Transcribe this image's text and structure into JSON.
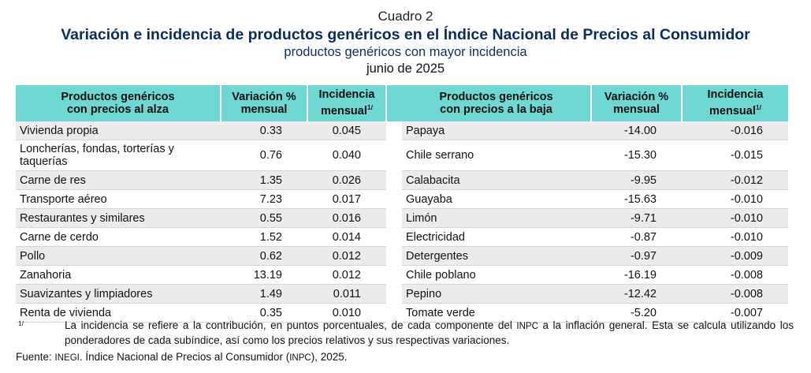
{
  "header": {
    "label": "Cuadro 2",
    "title": "Variación e incidencia de productos genéricos en el Índice Nacional de Precios al Consumidor",
    "subtitle": "productos genéricos con mayor incidencia",
    "date": "junio de 2025"
  },
  "table": {
    "headers": {
      "up_name_line1": "Productos genéricos",
      "up_name_line2": "con precios al alza",
      "var_line1": "Variación %",
      "var_line2": "mensual",
      "inc_line1": "Incidencia",
      "inc_line2": "mensual",
      "inc_sup": "1/",
      "down_name_line1": "Productos genéricos",
      "down_name_line2": "con precios a la baja"
    },
    "rows": [
      {
        "up": "Vivienda propia",
        "up_var": "0.33",
        "up_inc": "0.045",
        "down": "Papaya",
        "down_var": "-14.00",
        "down_inc": "-0.016"
      },
      {
        "up": "Loncherías, fondas, torterías y taquerías",
        "up_var": "0.76",
        "up_inc": "0.040",
        "down": "Chile serrano",
        "down_var": "-15.30",
        "down_inc": "-0.015"
      },
      {
        "up": "Carne de res",
        "up_var": "1.35",
        "up_inc": "0.026",
        "down": "Calabacita",
        "down_var": "-9.95",
        "down_inc": "-0.012"
      },
      {
        "up": "Transporte aéreo",
        "up_var": "7.23",
        "up_inc": "0.017",
        "down": "Guayaba",
        "down_var": "-15.63",
        "down_inc": "-0.010"
      },
      {
        "up": "Restaurantes y similares",
        "up_var": "0.55",
        "up_inc": "0.016",
        "down": "Limón",
        "down_var": "-9.71",
        "down_inc": "-0.010"
      },
      {
        "up": "Carne de cerdo",
        "up_var": "1.52",
        "up_inc": "0.014",
        "down": "Electricidad",
        "down_var": "-0.87",
        "down_inc": "-0.010"
      },
      {
        "up": "Pollo",
        "up_var": "0.62",
        "up_inc": "0.012",
        "down": "Detergentes",
        "down_var": "-0.97",
        "down_inc": "-0.009"
      },
      {
        "up": "Zanahoria",
        "up_var": "13.19",
        "up_inc": "0.012",
        "down": "Chile poblano",
        "down_var": "-16.19",
        "down_inc": "-0.008"
      },
      {
        "up": "Suavizantes y limpiadores",
        "up_var": "1.49",
        "up_inc": "0.011",
        "down": "Pepino",
        "down_var": "-12.42",
        "down_inc": "-0.008"
      },
      {
        "up": "Renta de vivienda",
        "up_var": "0.35",
        "up_inc": "0.010",
        "down": "Tomate verde",
        "down_var": "-5.20",
        "down_inc": "-0.007"
      }
    ]
  },
  "footnote": {
    "mark": "1/",
    "text_a": "La incidencia se refiere a la contribución, en puntos porcentuales, de cada componente del ",
    "text_sc": "INPC",
    "text_b": " a la inflación general. Esta se calcula utilizando los ponderadores de cada subíndice, así como los precios relativos y sus respectivas variaciones."
  },
  "source": {
    "prefix": "Fuente: ",
    "org": "INEGI",
    "middle": ". Índice Nacional de Precios al Consumidor (",
    "abbr": "INPC",
    "suffix": "), 2025."
  },
  "colors": {
    "header_fill": "#6fd8d3",
    "title_color": "#0a2d5e",
    "stripe": "#ebebeb"
  }
}
